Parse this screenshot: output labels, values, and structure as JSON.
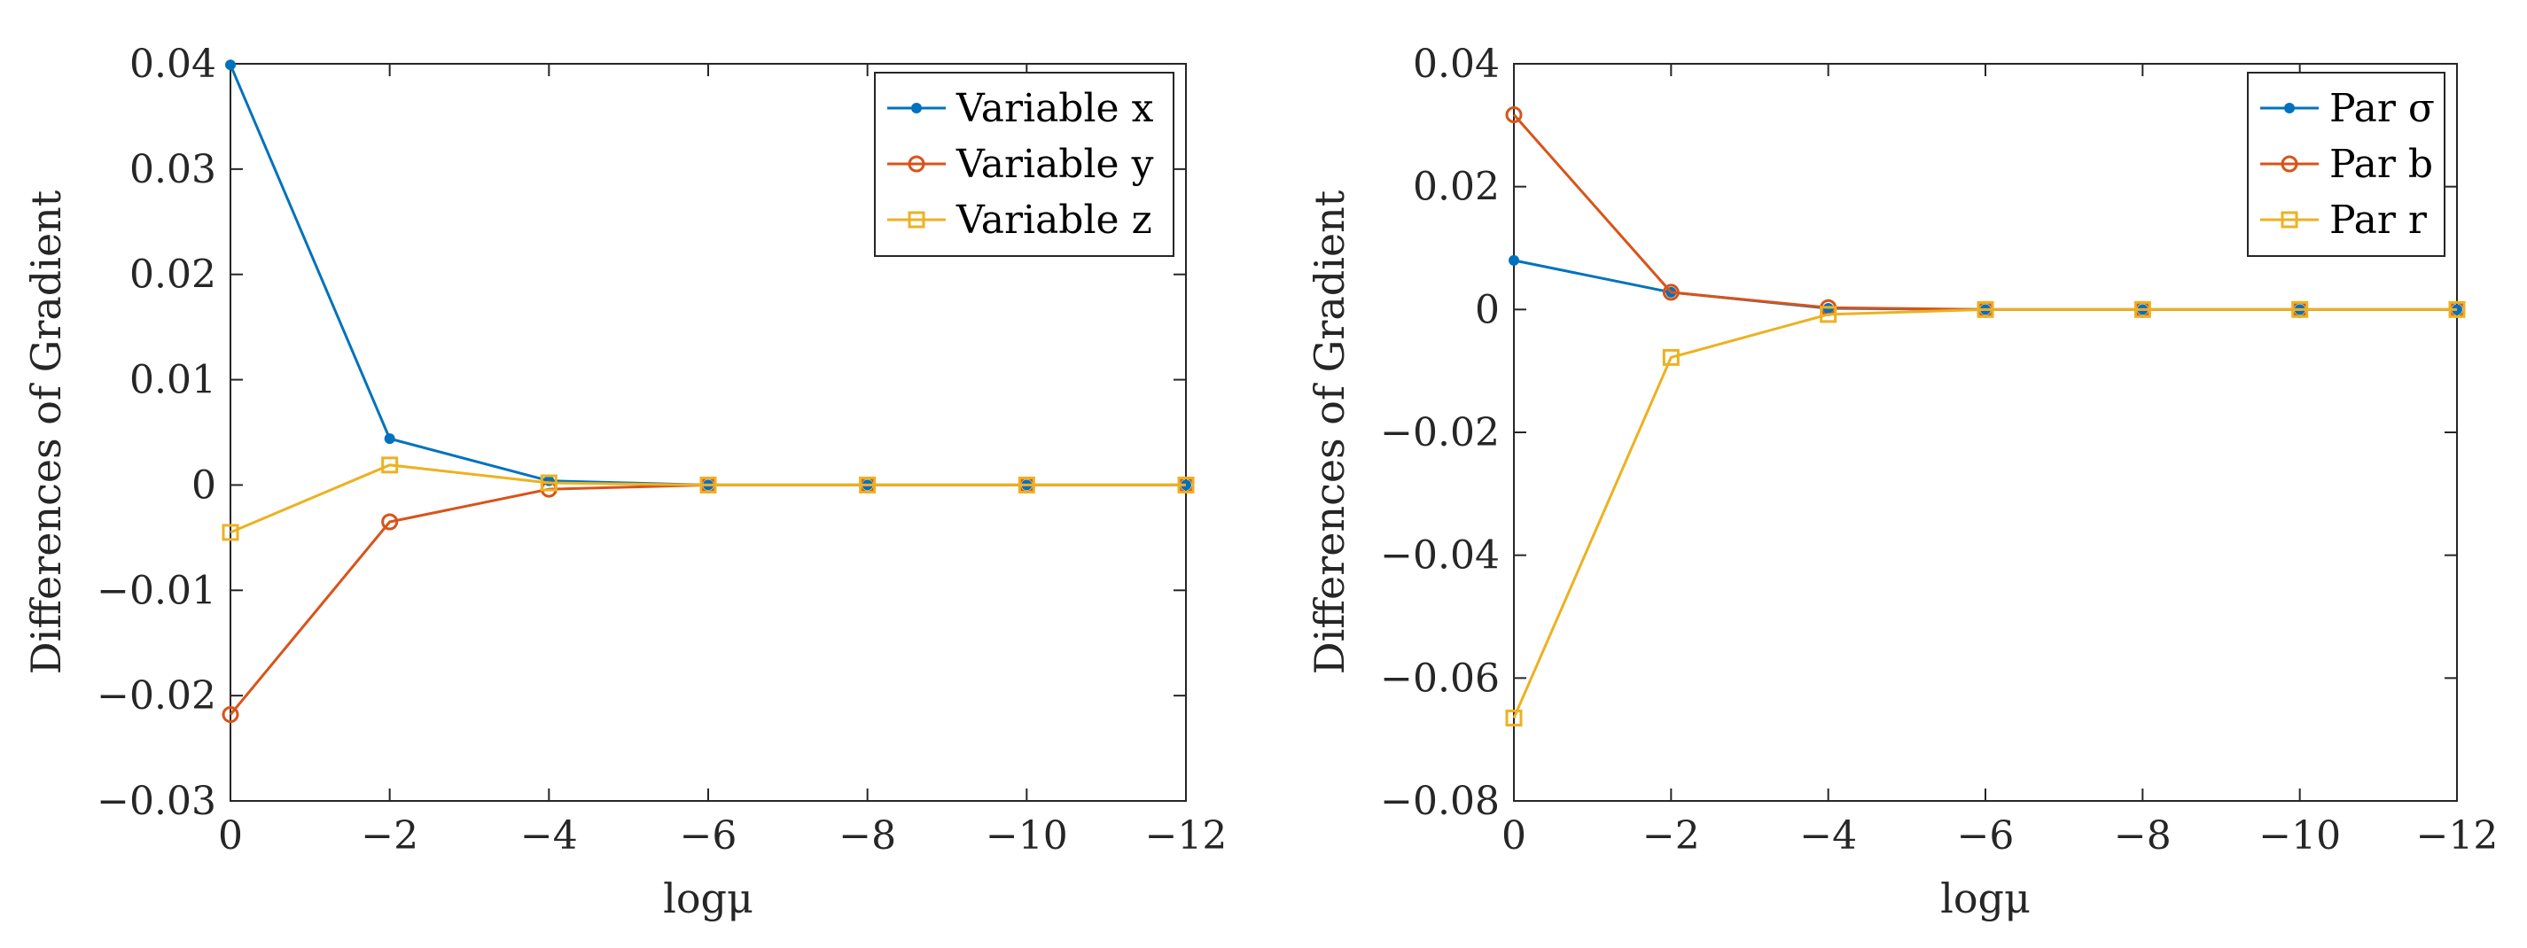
{
  "chart_data": [
    {
      "type": "line",
      "title": "",
      "xlabel": "logμ",
      "ylabel": "Differences of Gradient",
      "x": [
        0,
        -2,
        -4,
        -6,
        -8,
        -10,
        -12
      ],
      "xticks": [
        0,
        -2,
        -4,
        -6,
        -8,
        -10,
        -12
      ],
      "xtick_labels": [
        "0",
        "−2",
        "−4",
        "−6",
        "−8",
        "−10",
        "−12"
      ],
      "xlim": [
        0,
        -12
      ],
      "ylim": [
        -0.03,
        0.04
      ],
      "yticks": [
        -0.03,
        -0.02,
        -0.01,
        0,
        0.01,
        0.02,
        0.03,
        0.04
      ],
      "ytick_labels": [
        "−0.03",
        "−0.02",
        "−0.01",
        "0",
        "0.01",
        "0.02",
        "0.03",
        "0.04"
      ],
      "grid": false,
      "legend_position": "top-right",
      "series": [
        {
          "name": "Variable x",
          "color": "#0072BD",
          "marker": "dot",
          "values": [
            0.0399,
            0.0044,
            0.0004,
            0.0,
            0.0,
            0.0,
            0.0
          ]
        },
        {
          "name": "Variable y",
          "color": "#D95319",
          "marker": "circle",
          "values": [
            -0.0218,
            -0.0035,
            -0.0004,
            0.0,
            0.0,
            0.0,
            0.0
          ]
        },
        {
          "name": "Variable z",
          "color": "#EDB120",
          "marker": "square",
          "values": [
            -0.0045,
            0.0019,
            0.0002,
            0.0,
            0.0,
            0.0,
            0.0
          ]
        }
      ]
    },
    {
      "type": "line",
      "title": "",
      "xlabel": "logμ",
      "ylabel": "Differences of Gradient",
      "x": [
        0,
        -2,
        -4,
        -6,
        -8,
        -10,
        -12
      ],
      "xticks": [
        0,
        -2,
        -4,
        -6,
        -8,
        -10,
        -12
      ],
      "xtick_labels": [
        "0",
        "−2",
        "−4",
        "−6",
        "−8",
        "−10",
        "−12"
      ],
      "xlim": [
        0,
        -12
      ],
      "ylim": [
        -0.08,
        0.04
      ],
      "yticks": [
        -0.08,
        -0.06,
        -0.04,
        -0.02,
        0,
        0.02,
        0.04
      ],
      "ytick_labels": [
        "−0.08",
        "−0.06",
        "−0.04",
        "−0.02",
        "0",
        "0.02",
        "0.04"
      ],
      "grid": false,
      "legend_position": "top-right",
      "series": [
        {
          "name": "Par σ",
          "color": "#0072BD",
          "marker": "dot",
          "values": [
            0.008,
            0.0028,
            0.0002,
            0.0,
            0.0,
            0.0,
            0.0
          ]
        },
        {
          "name": "Par b",
          "color": "#D95319",
          "marker": "circle",
          "values": [
            0.0317,
            0.0028,
            0.0003,
            0.0,
            0.0,
            0.0,
            0.0
          ]
        },
        {
          "name": "Par r",
          "color": "#EDB120",
          "marker": "square",
          "values": [
            -0.0665,
            -0.0078,
            -0.0008,
            0.0,
            0.0,
            0.0,
            0.0
          ]
        }
      ]
    }
  ]
}
